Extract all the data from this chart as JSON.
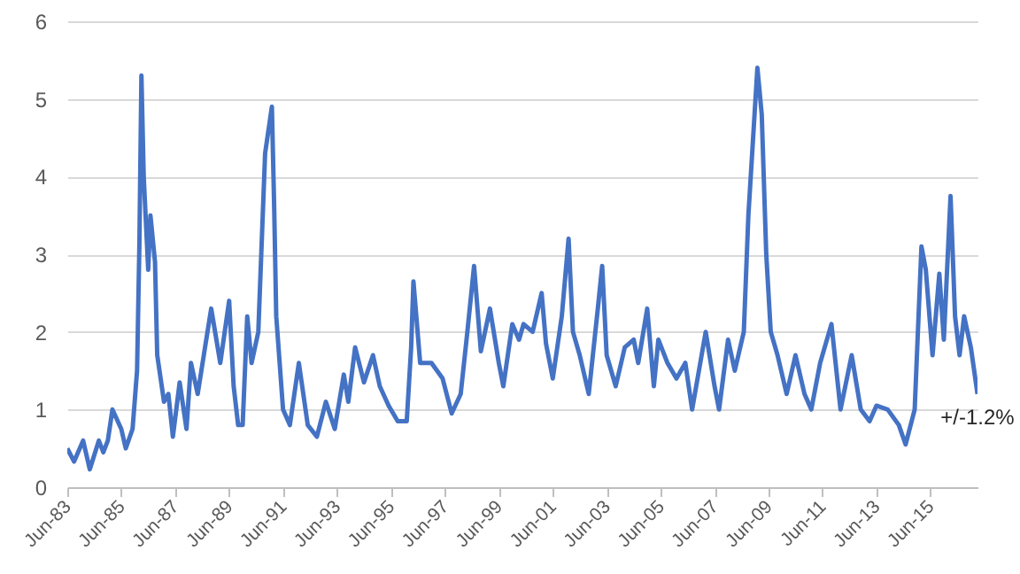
{
  "chart_data": {
    "type": "line",
    "x": [
      "1983-06",
      "1983-09",
      "1984-01",
      "1984-04",
      "1984-08",
      "1984-10",
      "1984-12",
      "1985-02",
      "1985-06",
      "1985-08",
      "1985-11",
      "1986-01",
      "1986-02",
      "1986-03",
      "1986-04",
      "1986-06",
      "1986-07",
      "1986-09",
      "1986-10",
      "1987-01",
      "1987-03",
      "1987-05",
      "1987-08",
      "1987-11",
      "1988-01",
      "1988-04",
      "1988-07",
      "1988-10",
      "1989-02",
      "1989-06",
      "1989-08",
      "1989-10",
      "1989-12",
      "1990-02",
      "1990-04",
      "1990-07",
      "1990-10",
      "1991-01",
      "1991-02",
      "1991-03",
      "1991-06",
      "1991-09",
      "1992-01",
      "1992-05",
      "1992-09",
      "1993-01",
      "1993-05",
      "1993-09",
      "1993-11",
      "1994-02",
      "1994-06",
      "1994-10",
      "1995-01",
      "1995-05",
      "1995-09",
      "1996-01",
      "1996-03",
      "1996-04",
      "1996-07",
      "1996-12",
      "1997-05",
      "1997-09",
      "1998-01",
      "1998-04",
      "1998-07",
      "1998-10",
      "1999-02",
      "1999-06",
      "1999-08",
      "1999-12",
      "2000-03",
      "2000-05",
      "2000-09",
      "2001-01",
      "2001-03",
      "2001-06",
      "2001-10",
      "2002-01",
      "2002-03",
      "2002-06",
      "2002-10",
      "2003-02",
      "2003-04",
      "2003-06",
      "2003-10",
      "2004-02",
      "2004-06",
      "2004-08",
      "2004-12",
      "2005-03",
      "2005-05",
      "2005-09",
      "2006-01",
      "2006-05",
      "2006-08",
      "2007-02",
      "2007-06",
      "2007-08",
      "2007-12",
      "2008-03",
      "2008-07",
      "2008-09",
      "2009-01",
      "2009-03",
      "2009-05",
      "2009-07",
      "2009-10",
      "2010-02",
      "2010-06",
      "2010-10",
      "2011-01",
      "2011-05",
      "2011-10",
      "2012-02",
      "2012-07",
      "2012-11",
      "2013-03",
      "2013-06",
      "2013-11",
      "2014-04",
      "2014-07",
      "2014-11",
      "2015-02",
      "2015-04",
      "2015-07",
      "2015-10",
      "2015-12",
      "2016-03",
      "2016-05",
      "2016-07",
      "2016-09",
      "2016-12",
      "2017-03"
    ],
    "series": [
      {
        "color": "#4472c4",
        "values": [
          0.5,
          0.33,
          0.6,
          0.23,
          0.6,
          0.45,
          0.6,
          1.0,
          0.75,
          0.5,
          0.75,
          1.5,
          3.1,
          5.3,
          4.0,
          2.8,
          3.5,
          2.9,
          1.7,
          1.1,
          1.2,
          0.65,
          1.35,
          0.75,
          1.6,
          1.2,
          1.75,
          2.3,
          1.6,
          2.4,
          1.3,
          0.8,
          0.8,
          2.2,
          1.6,
          2.0,
          4.3,
          4.9,
          3.6,
          2.2,
          1.0,
          0.8,
          1.6,
          0.8,
          0.65,
          1.1,
          0.75,
          1.45,
          1.1,
          1.8,
          1.35,
          1.7,
          1.3,
          1.05,
          0.85,
          0.85,
          1.8,
          2.65,
          1.6,
          1.6,
          1.4,
          0.95,
          1.2,
          2.0,
          2.85,
          1.75,
          2.3,
          1.6,
          1.3,
          2.1,
          1.9,
          2.1,
          2.0,
          2.5,
          1.85,
          1.4,
          2.2,
          3.2,
          2.0,
          1.7,
          1.2,
          2.3,
          2.85,
          1.7,
          1.3,
          1.8,
          1.9,
          1.6,
          2.3,
          1.3,
          1.9,
          1.6,
          1.4,
          1.6,
          1.0,
          2.0,
          1.3,
          1.0,
          1.9,
          1.5,
          2.0,
          3.5,
          5.4,
          4.8,
          3.0,
          2.0,
          1.7,
          1.2,
          1.7,
          1.2,
          1.0,
          1.6,
          2.1,
          1.0,
          1.7,
          1.0,
          0.85,
          1.05,
          1.0,
          0.8,
          0.55,
          1.0,
          3.1,
          2.8,
          1.7,
          2.75,
          1.9,
          3.75,
          2.2,
          1.7,
          2.2,
          1.8,
          1.2
        ]
      }
    ],
    "xlim": [
      "1983-06",
      "2017-03"
    ],
    "xticks": [
      {
        "value": "1983-06",
        "label": "Jun-83"
      },
      {
        "value": "1985-06",
        "label": "Jun-85"
      },
      {
        "value": "1987-06",
        "label": "Jun-87"
      },
      {
        "value": "1989-06",
        "label": "Jun-89"
      },
      {
        "value": "1991-06",
        "label": "Jun-91"
      },
      {
        "value": "1993-06",
        "label": "Jun-93"
      },
      {
        "value": "1995-06",
        "label": "Jun-95"
      },
      {
        "value": "1997-06",
        "label": "Jun-97"
      },
      {
        "value": "1999-06",
        "label": "Jun-99"
      },
      {
        "value": "2001-06",
        "label": "Jun-01"
      },
      {
        "value": "2003-06",
        "label": "Jun-03"
      },
      {
        "value": "2005-06",
        "label": "Jun-05"
      },
      {
        "value": "2007-06",
        "label": "Jun-07"
      },
      {
        "value": "2009-06",
        "label": "Jun-09"
      },
      {
        "value": "2011-06",
        "label": "Jun-11"
      },
      {
        "value": "2013-06",
        "label": "Jun-13"
      },
      {
        "value": "2015-06",
        "label": "Jun-15"
      }
    ],
    "ylim": [
      0,
      6
    ],
    "yticks": [
      0,
      1,
      2,
      3,
      4,
      5,
      6
    ],
    "grid": "y",
    "line_style": "solid",
    "annotations": [
      {
        "text": "+/-1.2%",
        "x": "2017-03",
        "y": 1.2
      }
    ]
  }
}
